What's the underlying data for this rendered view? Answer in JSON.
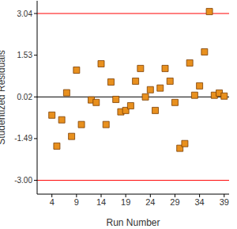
{
  "chart_data": {
    "type": "scatter",
    "x_label": "Run Number",
    "y_label": "Studentized Residuals",
    "x": [
      4,
      5,
      6,
      7,
      8,
      9,
      10,
      12,
      13,
      14,
      15,
      16,
      17,
      18,
      19,
      20,
      21,
      22,
      23,
      24,
      25,
      26,
      27,
      28,
      29,
      30,
      31,
      32,
      33,
      34,
      35,
      36,
      37,
      38,
      39
    ],
    "values": [
      -0.64,
      -1.76,
      -0.81,
      0.17,
      -1.41,
      0.99,
      -0.98,
      -0.09,
      -0.18,
      1.22,
      -0.98,
      0.56,
      -0.07,
      -0.52,
      -0.47,
      -0.3,
      0.59,
      1.05,
      0.02,
      0.28,
      -0.47,
      0.34,
      1.05,
      0.59,
      -0.18,
      -1.84,
      -1.67,
      1.25,
      0.08,
      0.42,
      1.65,
      3.11,
      0.08,
      0.16,
      0.05
    ],
    "color": "#e8901e",
    "marker": "square",
    "xlim": [
      1,
      40
    ],
    "xticks": [
      4,
      9,
      14,
      19,
      24,
      29,
      34,
      39
    ],
    "ylim": [
      -3.5,
      3.5
    ],
    "yticks": [
      {
        "value": -3,
        "label": "-3.00"
      },
      -1.49,
      0.02,
      1.53,
      3.04
    ],
    "grid": false,
    "reference_lines": [
      {
        "value": 3.04,
        "color": "#ff0000"
      },
      {
        "value": 0.02,
        "color": "#000000"
      },
      {
        "value": -3,
        "color": "#ff0000"
      }
    ]
  }
}
